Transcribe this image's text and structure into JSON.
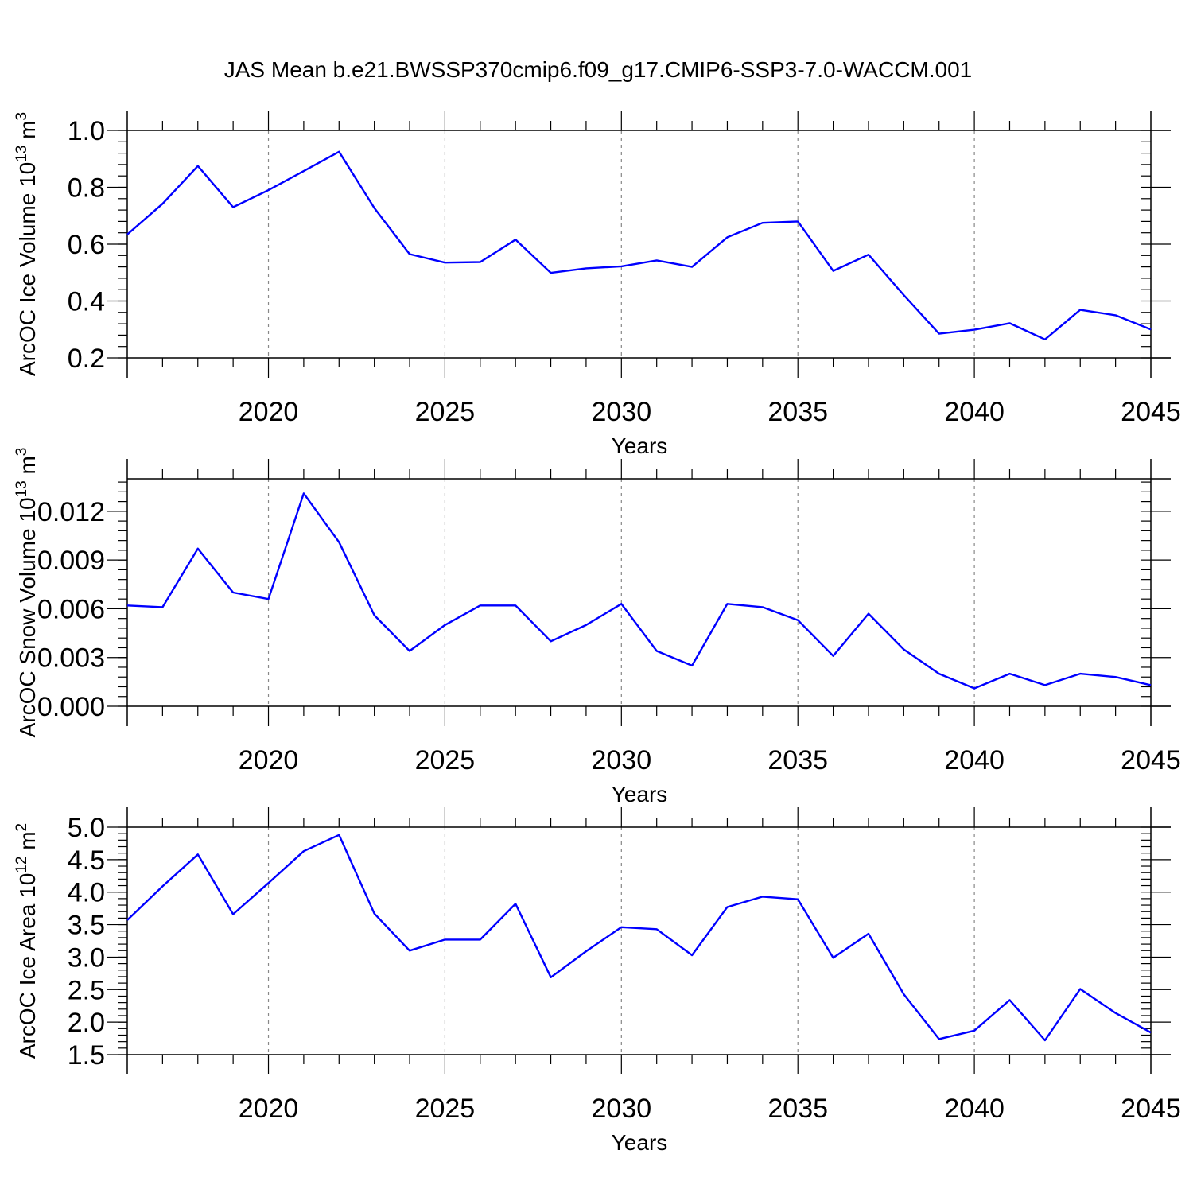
{
  "title": "JAS Mean b.e21.BWSSP370cmip6.f09_g17.CMIP6-SSP3-7.0-WACCM.001",
  "line_color": "#0000ff",
  "chart_data": [
    {
      "type": "line",
      "ylabel_main": "ArcOC Ice Volume 10",
      "ylabel_sup": "13",
      "ylabel_unit": " m",
      "ylabel_unit_sup": "3",
      "xlabel": "Years",
      "xlim": [
        2016,
        2045
      ],
      "ylim": [
        0.2,
        1.0
      ],
      "yticks": [
        0.2,
        0.4,
        0.6,
        0.8,
        1.0
      ],
      "ytick_labels": [
        "0.2",
        "0.4",
        "0.6",
        "0.8",
        "1.0"
      ],
      "yminor_step": 0.04,
      "xticks": [
        2020,
        2025,
        2030,
        2035,
        2040,
        2045
      ],
      "xtick_labels": [
        "2020",
        "2025",
        "2030",
        "2035",
        "2040",
        "2045"
      ],
      "grid": "dashed vertical at labeled years",
      "x": [
        2016,
        2017,
        2018,
        2019,
        2020,
        2021,
        2022,
        2023,
        2024,
        2025,
        2026,
        2027,
        2028,
        2029,
        2030,
        2031,
        2032,
        2033,
        2034,
        2035,
        2036,
        2037,
        2038,
        2039,
        2040,
        2041,
        2042,
        2043,
        2044,
        2045
      ],
      "y": [
        0.634,
        0.742,
        0.875,
        0.73,
        0.79,
        0.857,
        0.925,
        0.727,
        0.565,
        0.535,
        0.537,
        0.616,
        0.499,
        0.515,
        0.522,
        0.543,
        0.52,
        0.624,
        0.675,
        0.68,
        0.506,
        0.563,
        0.421,
        0.285,
        0.299,
        0.322,
        0.265,
        0.369,
        0.35,
        0.3
      ]
    },
    {
      "type": "line",
      "ylabel_main": "ArcOC Snow Volume 10",
      "ylabel_sup": "13",
      "ylabel_unit": " m",
      "ylabel_unit_sup": "3",
      "xlabel": "Years",
      "xlim": [
        2016,
        2045
      ],
      "ylim": [
        0.0,
        0.014
      ],
      "yticks": [
        0.0,
        0.003,
        0.006,
        0.009,
        0.012
      ],
      "ytick_labels": [
        "0.000",
        "0.003",
        "0.006",
        "0.009",
        "0.012"
      ],
      "yminor_step": 0.0006,
      "xticks": [
        2020,
        2025,
        2030,
        2035,
        2040,
        2045
      ],
      "xtick_labels": [
        "2020",
        "2025",
        "2030",
        "2035",
        "2040",
        "2045"
      ],
      "grid": "dashed vertical at labeled years",
      "x": [
        2016,
        2017,
        2018,
        2019,
        2020,
        2021,
        2022,
        2023,
        2024,
        2025,
        2026,
        2027,
        2028,
        2029,
        2030,
        2031,
        2032,
        2033,
        2034,
        2035,
        2036,
        2037,
        2038,
        2039,
        2040,
        2041,
        2042,
        2043,
        2044,
        2045
      ],
      "y": [
        0.0062,
        0.0061,
        0.0097,
        0.007,
        0.0066,
        0.0131,
        0.0101,
        0.0056,
        0.0034,
        0.005,
        0.0062,
        0.0062,
        0.004,
        0.005,
        0.0063,
        0.0034,
        0.0025,
        0.0063,
        0.0061,
        0.0053,
        0.0031,
        0.0057,
        0.0035,
        0.002,
        0.0011,
        0.002,
        0.0013,
        0.002,
        0.0018,
        0.0013
      ]
    },
    {
      "type": "line",
      "ylabel_main": "ArcOC Ice Area 10",
      "ylabel_sup": "12",
      "ylabel_unit": " m",
      "ylabel_unit_sup": "2",
      "xlabel": "Years",
      "xlim": [
        2016,
        2045
      ],
      "ylim": [
        1.5,
        5.0
      ],
      "yticks": [
        1.5,
        2.0,
        2.5,
        3.0,
        3.5,
        4.0,
        4.5,
        5.0
      ],
      "ytick_labels": [
        "1.5",
        "2.0",
        "2.5",
        "3.0",
        "3.5",
        "4.0",
        "4.5",
        "5.0"
      ],
      "yminor_step": 0.1,
      "xticks": [
        2020,
        2025,
        2030,
        2035,
        2040,
        2045
      ],
      "xtick_labels": [
        "2020",
        "2025",
        "2030",
        "2035",
        "2040",
        "2045"
      ],
      "grid": "dashed vertical at labeled years",
      "x": [
        2016,
        2017,
        2018,
        2019,
        2020,
        2021,
        2022,
        2023,
        2024,
        2025,
        2026,
        2027,
        2028,
        2029,
        2030,
        2031,
        2032,
        2033,
        2034,
        2035,
        2036,
        2037,
        2038,
        2039,
        2040,
        2041,
        2042,
        2043,
        2044,
        2045
      ],
      "y": [
        3.57,
        4.09,
        4.58,
        3.66,
        4.14,
        4.63,
        4.88,
        3.67,
        3.1,
        3.27,
        3.27,
        3.82,
        2.69,
        3.09,
        3.46,
        3.43,
        3.03,
        3.77,
        3.93,
        3.89,
        2.99,
        3.36,
        2.43,
        1.74,
        1.87,
        2.34,
        1.72,
        2.51,
        2.14,
        1.84
      ]
    }
  ]
}
